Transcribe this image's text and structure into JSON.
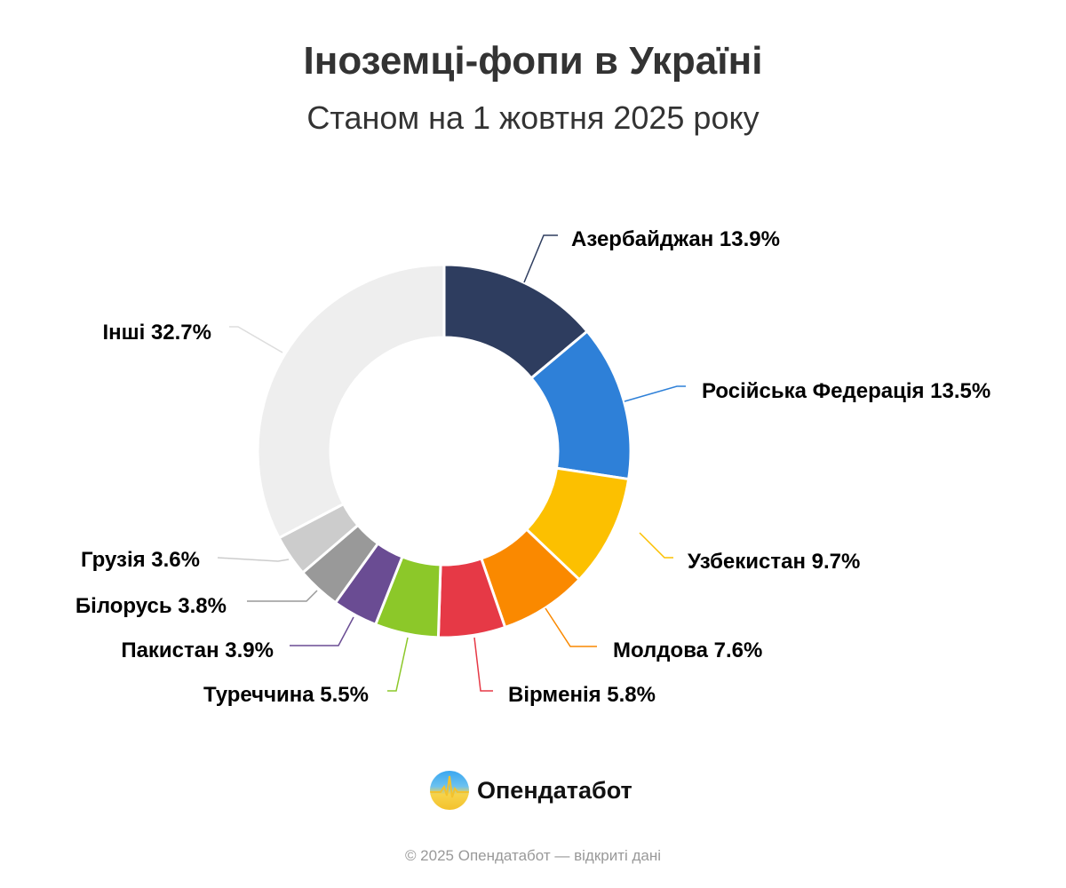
{
  "chart_data": {
    "type": "pie",
    "variant": "donut",
    "title": "Іноземці-фопи в Україні",
    "subtitle": "Станом на 1 жовтня 2025 року",
    "unit": "%",
    "slices": [
      {
        "label": "Азербайджан",
        "value": 13.9,
        "color": "#2e3d5f"
      },
      {
        "label": "Російська Федерація",
        "value": 13.5,
        "color": "#2e80d8"
      },
      {
        "label": "Узбекистан",
        "value": 9.7,
        "color": "#fcc000"
      },
      {
        "label": "Молдова",
        "value": 7.6,
        "color": "#fa8900"
      },
      {
        "label": "Вірменія",
        "value": 5.8,
        "color": "#e63946"
      },
      {
        "label": "Туреччина",
        "value": 5.5,
        "color": "#8cc829"
      },
      {
        "label": "Пакистан",
        "value": 3.9,
        "color": "#6a4c93"
      },
      {
        "label": "Білорусь",
        "value": 3.8,
        "color": "#999999"
      },
      {
        "label": "Грузія",
        "value": 3.6,
        "color": "#cccccc"
      },
      {
        "label": "Інші",
        "value": 32.7,
        "color": "#eeeeee"
      }
    ],
    "start_angle": "top",
    "direction": "clockwise"
  },
  "brand": {
    "name": "Опендатабот"
  },
  "footer": "© 2025 Опендатабот — відкриті дані"
}
